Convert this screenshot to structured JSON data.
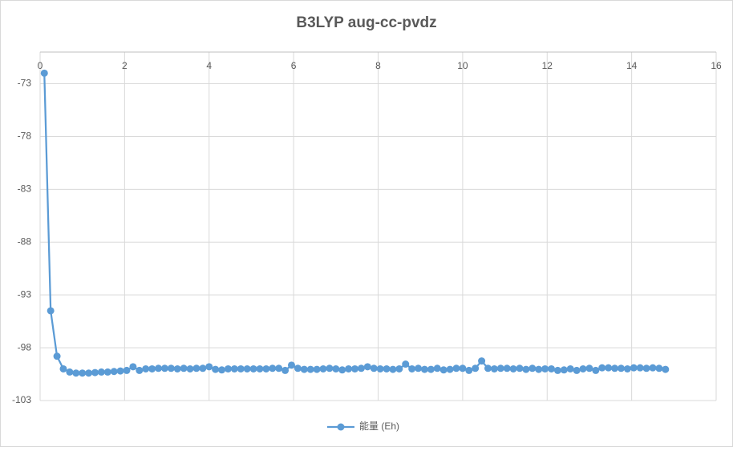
{
  "chart_data": {
    "type": "line",
    "title": "B3LYP aug-cc-pvdz",
    "x": [
      0.1,
      0.25,
      0.4,
      0.55,
      0.7,
      0.85,
      1,
      1.15,
      1.3,
      1.45,
      1.6,
      1.75,
      1.9,
      2.05,
      2.2,
      2.35,
      2.5,
      2.65,
      2.8,
      2.95,
      3.1,
      3.25,
      3.4,
      3.55,
      3.7,
      3.85,
      4,
      4.15,
      4.3,
      4.45,
      4.6,
      4.75,
      4.9,
      5.05,
      5.2,
      5.35,
      5.5,
      5.65,
      5.8,
      5.95,
      6.1,
      6.25,
      6.4,
      6.55,
      6.7,
      6.85,
      7,
      7.15,
      7.3,
      7.45,
      7.6,
      7.75,
      7.9,
      8.05,
      8.2,
      8.35,
      8.5,
      8.65,
      8.8,
      8.95,
      9.1,
      9.25,
      9.4,
      9.55,
      9.7,
      9.85,
      10,
      10.15,
      10.3,
      10.45,
      10.6,
      10.75,
      10.9,
      11.05,
      11.2,
      11.35,
      11.5,
      11.65,
      11.8,
      11.95,
      12.1,
      12.25,
      12.4,
      12.55,
      12.7,
      12.85,
      13,
      13.15,
      13.3,
      13.45,
      13.6,
      13.75,
      13.9,
      14.05,
      14.2,
      14.35,
      14.5,
      14.65,
      14.8
    ],
    "series": [
      {
        "name": "能量 (Eh)",
        "color": "#5b9bd5",
        "values": [
          -72.0,
          -94.5,
          -98.8,
          -100.0,
          -100.3,
          -100.4,
          -100.4,
          -100.4,
          -100.35,
          -100.3,
          -100.3,
          -100.25,
          -100.2,
          -100.15,
          -99.8,
          -100.15,
          -100.0,
          -100.0,
          -99.95,
          -99.95,
          -99.95,
          -100.0,
          -99.95,
          -100.0,
          -99.95,
          -99.95,
          -99.8,
          -100.05,
          -100.1,
          -100.0,
          -100.0,
          -100.0,
          -100.0,
          -100.0,
          -100.0,
          -100.0,
          -99.95,
          -99.95,
          -100.15,
          -99.65,
          -99.95,
          -100.05,
          -100.05,
          -100.05,
          -100.0,
          -99.95,
          -100.0,
          -100.1,
          -100.0,
          -100.0,
          -99.95,
          -99.8,
          -99.95,
          -100.0,
          -100.0,
          -100.05,
          -100.0,
          -99.55,
          -100.0,
          -99.95,
          -100.05,
          -100.05,
          -99.95,
          -100.1,
          -100.05,
          -99.95,
          -99.95,
          -100.15,
          -99.95,
          -99.25,
          -99.95,
          -100.0,
          -99.95,
          -99.95,
          -100.0,
          -99.95,
          -100.05,
          -99.95,
          -100.05,
          -100.0,
          -100.0,
          -100.15,
          -100.1,
          -100.0,
          -100.15,
          -100.0,
          -99.95,
          -100.15,
          -99.9,
          -99.9,
          -99.95,
          -99.95,
          -100.0,
          -99.9,
          -99.9,
          -99.95,
          -99.9,
          -99.95,
          -100.05
        ]
      }
    ],
    "xlim": [
      0,
      16
    ],
    "xticks": [
      0,
      2,
      4,
      6,
      8,
      10,
      12,
      14,
      16
    ],
    "ylim": [
      -103,
      -70
    ],
    "yticks": [
      -73,
      -78,
      -83,
      -88,
      -93,
      -98,
      -103
    ],
    "grid": true
  }
}
